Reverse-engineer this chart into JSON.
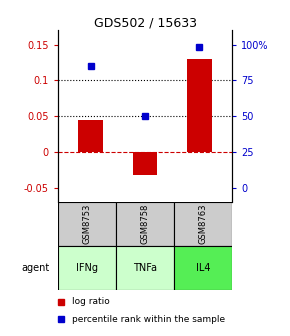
{
  "title": "GDS502 / 15633",
  "samples": [
    "GSM8753",
    "GSM8758",
    "GSM8763"
  ],
  "agents": [
    "IFNg",
    "TNFa",
    "IL4"
  ],
  "log_ratios": [
    0.045,
    -0.032,
    0.13
  ],
  "percentile_ranks": [
    0.12,
    0.05,
    0.147
  ],
  "bar_color": "#cc0000",
  "dot_color": "#0000cc",
  "ylim": [
    -0.07,
    0.17
  ],
  "left_yticks": [
    -0.05,
    0.0,
    0.05,
    0.1,
    0.15
  ],
  "left_ytick_labels": [
    "-0.05",
    "0",
    "0.05",
    "0.1",
    "0.15"
  ],
  "right_yticks": [
    -0.05,
    0.0,
    0.05,
    0.1,
    0.15
  ],
  "right_ytick_labels": [
    "0",
    "25",
    "50",
    "75",
    "100%"
  ],
  "dotted_lines": [
    0.05,
    0.1
  ],
  "zero_line": 0.0,
  "agent_colors": [
    "#ccffcc",
    "#ccffcc",
    "#55ee55"
  ],
  "sample_bg_color": "#cccccc",
  "legend_items": [
    {
      "label": "log ratio",
      "color": "#cc0000"
    },
    {
      "label": "percentile rank within the sample",
      "color": "#0000cc"
    }
  ]
}
